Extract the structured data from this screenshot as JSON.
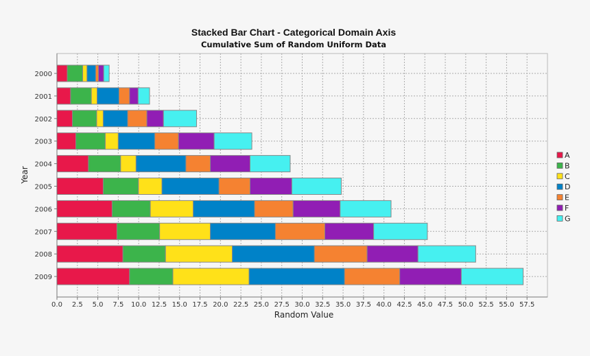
{
  "chart_data": {
    "type": "bar",
    "orientation": "horizontal",
    "stacked": true,
    "title": "Stacked Bar Chart - Categorical Domain Axis",
    "subtitle": "Cumulative Sum of Random Uniform Data",
    "xlabel": "Random Value",
    "ylabel": "Year",
    "xlim": [
      0,
      60
    ],
    "xticks": [
      "0.0",
      "2.5",
      "5.0",
      "7.5",
      "10.0",
      "12.5",
      "15.0",
      "17.5",
      "20.0",
      "22.5",
      "25.0",
      "27.5",
      "30.0",
      "32.5",
      "35.0",
      "37.5",
      "40.0",
      "42.5",
      "45.0",
      "47.5",
      "50.0",
      "52.5",
      "55.0",
      "57.5"
    ],
    "grid": true,
    "legend_position": "right",
    "categories": [
      "2000",
      "2001",
      "2002",
      "2003",
      "2004",
      "2005",
      "2006",
      "2007",
      "2008",
      "2009"
    ],
    "series": [
      {
        "name": "A",
        "color": "#e8184a",
        "values": [
          1.26,
          1.67,
          1.89,
          2.31,
          3.85,
          5.66,
          6.75,
          7.34,
          8.07,
          8.88
        ]
      },
      {
        "name": "B",
        "color": "#3cb44b",
        "values": [
          1.89,
          2.54,
          2.97,
          3.6,
          3.94,
          4.31,
          4.67,
          5.22,
          5.21,
          5.3
        ]
      },
      {
        "name": "C",
        "color": "#ffe119",
        "values": [
          0.53,
          0.7,
          0.8,
          1.59,
          1.89,
          2.87,
          5.25,
          6.2,
          8.16,
          9.32
        ]
      },
      {
        "name": "D",
        "color": "#0082c8",
        "values": [
          1.06,
          2.68,
          2.99,
          4.47,
          6.09,
          6.98,
          7.5,
          7.96,
          10.05,
          11.68
        ]
      },
      {
        "name": "E",
        "color": "#f58231",
        "values": [
          0.34,
          1.29,
          2.35,
          2.9,
          2.99,
          3.8,
          4.72,
          6.05,
          6.45,
          6.75
        ]
      },
      {
        "name": "F",
        "color": "#911eb4",
        "values": [
          0.64,
          1.05,
          2.03,
          4.36,
          4.86,
          5.11,
          5.75,
          5.97,
          6.22,
          7.53
        ]
      },
      {
        "name": "G",
        "color": "#46f0f0",
        "values": [
          0.67,
          1.4,
          4.05,
          4.61,
          4.91,
          6.05,
          6.23,
          6.57,
          7.06,
          7.57
        ]
      }
    ]
  }
}
